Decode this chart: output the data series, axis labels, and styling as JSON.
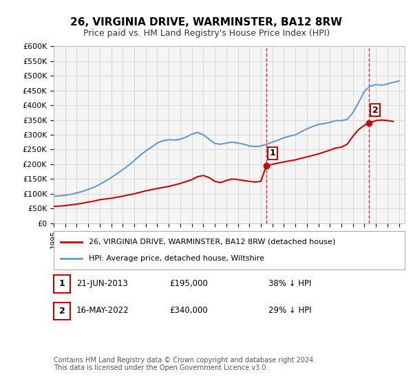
{
  "title": "26, VIRGINIA DRIVE, WARMINSTER, BA12 8RW",
  "subtitle": "Price paid vs. HM Land Registry's House Price Index (HPI)",
  "ylabel_ticks": [
    "£0",
    "£50K",
    "£100K",
    "£150K",
    "£200K",
    "£250K",
    "£300K",
    "£350K",
    "£400K",
    "£450K",
    "£500K",
    "£550K",
    "£600K"
  ],
  "ylim": [
    0,
    600000
  ],
  "xlim_start": 1995,
  "xlim_end": 2025.5,
  "marker1_x": 2013.47,
  "marker1_y": 195000,
  "marker1_label": "1",
  "marker2_x": 2022.37,
  "marker2_y": 340000,
  "marker2_label": "2",
  "vline1_x": 2013.47,
  "vline2_x": 2022.37,
  "legend_house_label": "26, VIRGINIA DRIVE, WARMINSTER, BA12 8RW (detached house)",
  "legend_hpi_label": "HPI: Average price, detached house, Wiltshire",
  "table_row1": [
    "1",
    "21-JUN-2013",
    "£195,000",
    "38% ↓ HPI"
  ],
  "table_row2": [
    "2",
    "16-MAY-2022",
    "£340,000",
    "29% ↓ HPI"
  ],
  "footer": "Contains HM Land Registry data © Crown copyright and database right 2024.\nThis data is licensed under the Open Government Licence v3.0.",
  "house_color": "#cc0000",
  "hpi_color": "#6699cc",
  "background_color": "#ffffff",
  "plot_bg_color": "#f5f5f5",
  "vline_color": "#cc0000",
  "grid_color": "#cccccc"
}
